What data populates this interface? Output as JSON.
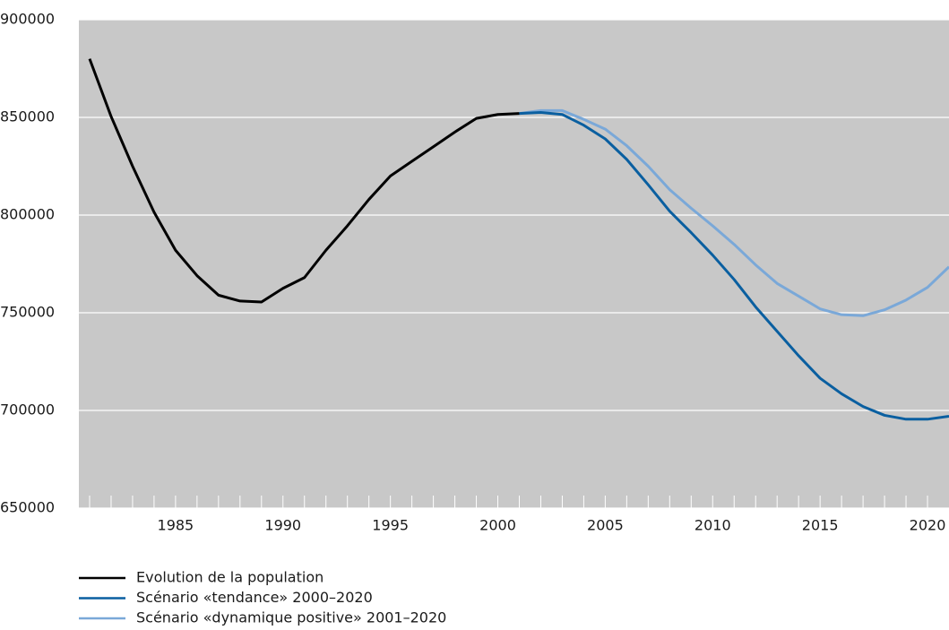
{
  "chart_data": {
    "type": "line",
    "series": [
      {
        "name": "Evolution de la population",
        "color": "#000000",
        "x": [
          1981,
          1982,
          1983,
          1984,
          1985,
          1986,
          1987,
          1988,
          1989,
          1990,
          1991,
          1992,
          1993,
          1994,
          1995,
          1996,
          1997,
          1998,
          1999,
          2000,
          2001
        ],
        "values": [
          880000,
          850500,
          825000,
          801500,
          782000,
          769000,
          759000,
          756000,
          755500,
          762500,
          768000,
          782000,
          794500,
          808000,
          820000,
          827500,
          835000,
          842500,
          849500,
          851500,
          852000
        ]
      },
      {
        "name": "Scénario «tendance» 2000–2020",
        "color": "#0a5fa0",
        "x": [
          2001,
          2002,
          2003,
          2004,
          2005,
          2006,
          2007,
          2008,
          2009,
          2010,
          2011,
          2012,
          2013,
          2014,
          2015,
          2016,
          2017,
          2018,
          2019,
          2020,
          2021
        ],
        "values": [
          852000,
          852500,
          851500,
          846000,
          839000,
          828500,
          815500,
          802000,
          791000,
          779500,
          767000,
          753000,
          740500,
          728000,
          716500,
          708500,
          702000,
          697500,
          695500,
          695500,
          697000
        ]
      },
      {
        "name": "Scénario «dynamique positive» 2001–2020",
        "color": "#7aa8d8",
        "x": [
          2001,
          2002,
          2003,
          2004,
          2005,
          2006,
          2007,
          2008,
          2009,
          2010,
          2011,
          2012,
          2013,
          2014,
          2015,
          2016,
          2017,
          2018,
          2019,
          2020,
          2021
        ],
        "values": [
          852000,
          853500,
          853500,
          849000,
          844000,
          835500,
          825000,
          813000,
          803500,
          794500,
          785000,
          774500,
          765000,
          758500,
          752000,
          749000,
          748500,
          751500,
          756500,
          763000,
          773500
        ]
      }
    ],
    "xlim": [
      1980.5,
      2021
    ],
    "xticks": [
      1985,
      1990,
      1995,
      2000,
      2005,
      2010,
      2015,
      2020
    ],
    "x_minor_ticks": [
      1981,
      1982,
      1983,
      1984,
      1985,
      1986,
      1987,
      1988,
      1989,
      1990,
      1991,
      1992,
      1993,
      1994,
      1995,
      1996,
      1997,
      1998,
      1999,
      2000,
      2001,
      2002,
      2003,
      2004,
      2005,
      2006,
      2007,
      2008,
      2009,
      2010,
      2011,
      2012,
      2013,
      2014,
      2015,
      2016,
      2017,
      2018,
      2019,
      2020
    ],
    "ylim": [
      650000,
      900000
    ],
    "yticks": [
      650000,
      700000,
      750000,
      800000,
      850000,
      900000
    ],
    "grid": true,
    "background": "#c8c8c8"
  }
}
